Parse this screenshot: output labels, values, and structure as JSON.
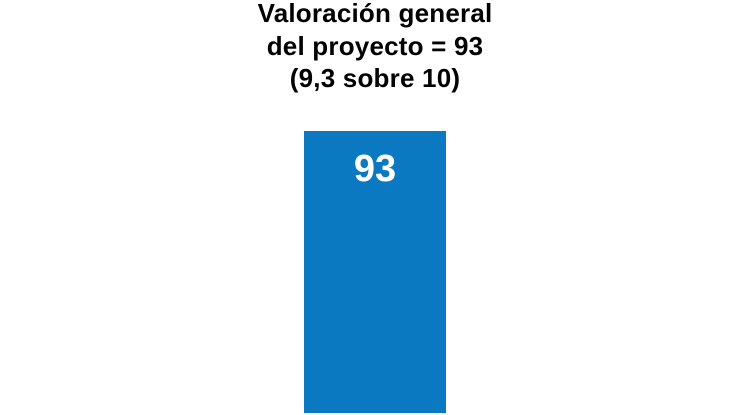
{
  "page": {
    "background_color": "#ffffff"
  },
  "chart": {
    "title_lines": [
      "Valoración general",
      "del proyecto = 93",
      "(9,3 sobre 10)"
    ],
    "bar_value_label": "93",
    "colors": {
      "bar": "#0b79c1",
      "bar_label": "#ffffff",
      "title_text": "#000000"
    }
  },
  "chart_data": {
    "type": "bar",
    "title": "Valoración general del proyecto = 93 (9,3 sobre 10)",
    "categories": [
      ""
    ],
    "values": [
      93
    ],
    "data_labels": [
      "93"
    ],
    "xlabel": "",
    "ylabel": "",
    "ylim": [
      0,
      100
    ],
    "legend": false,
    "grid": false,
    "axes_visible": false,
    "bar_color": "#0b79c1",
    "orientation": "vertical"
  }
}
